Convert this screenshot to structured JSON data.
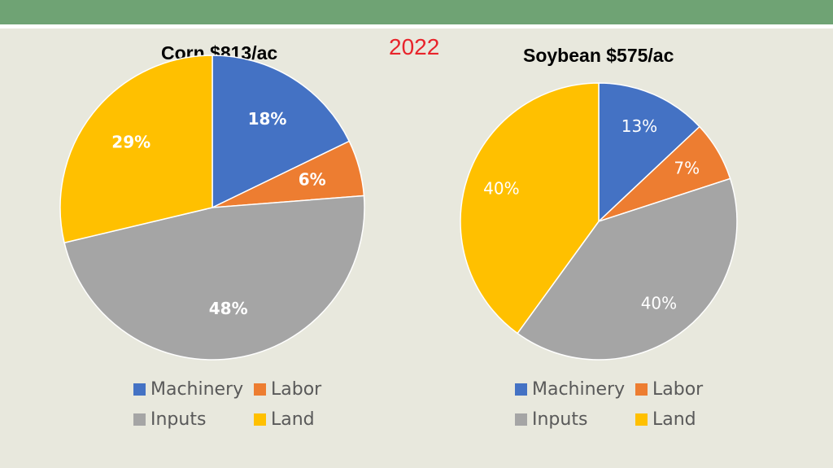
{
  "year_label": "2022",
  "colors": {
    "Machinery": "#4472c4",
    "Labor": "#ed7d31",
    "Inputs": "#a5a5a5",
    "Land": "#ffc000",
    "label_text": "#ffffff",
    "year_text": "#e8242b"
  },
  "chart_data": [
    {
      "type": "pie",
      "title": "Corn $813/ac",
      "categories": [
        "Machinery",
        "Labor",
        "Inputs",
        "Land"
      ],
      "values": [
        18,
        6,
        48,
        29
      ],
      "labels": [
        "18%",
        "6%",
        "48%",
        "29%"
      ],
      "label_style": "bold",
      "legend": [
        "Machinery",
        "Labor",
        "Inputs",
        "Land"
      ],
      "legend_position": "bottom"
    },
    {
      "type": "pie",
      "title": "Soybean $575/ac",
      "categories": [
        "Machinery",
        "Labor",
        "Inputs",
        "Land"
      ],
      "values": [
        13,
        7,
        40,
        40
      ],
      "labels": [
        "13%",
        "7%",
        "40%",
        "40%"
      ],
      "label_style": "normal",
      "legend": [
        "Machinery",
        "Labor",
        "Inputs",
        "Land"
      ],
      "legend_position": "bottom"
    }
  ]
}
